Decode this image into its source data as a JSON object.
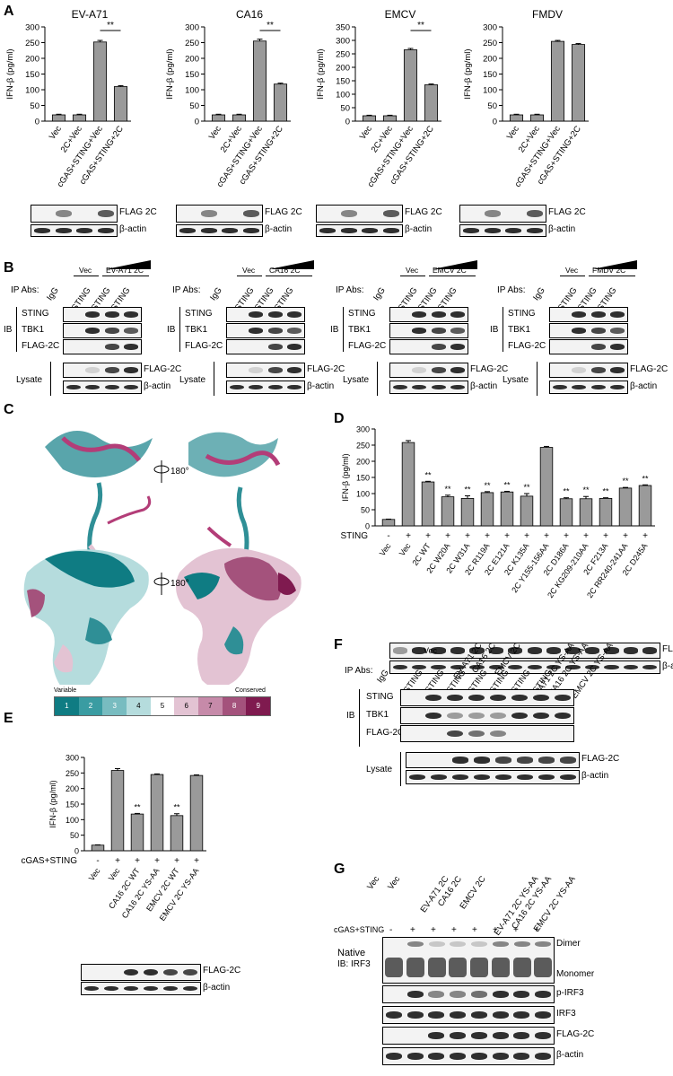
{
  "panel_labels": [
    "A",
    "B",
    "C",
    "D",
    "E",
    "F",
    "G"
  ],
  "chart_data": [
    {
      "type": "bar",
      "panel": "A",
      "title": "EV-A71",
      "ylabel": "IFN-β (pg/ml)",
      "ylim": [
        0,
        300
      ],
      "yticks": [
        0,
        50,
        100,
        150,
        200,
        250,
        300
      ],
      "categories": [
        "Vec",
        "2C+Vec",
        "cGAS+STING+Vec",
        "cGAS+STING+2C"
      ],
      "values": [
        20,
        20,
        252,
        110
      ],
      "errors": [
        2,
        2,
        5,
        3
      ],
      "significance": {
        "label": "**",
        "from": 2,
        "to": 3
      }
    },
    {
      "type": "bar",
      "panel": "A",
      "title": "CA16",
      "ylabel": "IFN-β (pg/ml)",
      "ylim": [
        0,
        300
      ],
      "yticks": [
        0,
        50,
        100,
        150,
        200,
        250,
        300
      ],
      "categories": [
        "Vec",
        "2C+Vec",
        "cGAS+STING+Vec",
        "cGAS+STING+2C"
      ],
      "values": [
        20,
        20,
        255,
        118
      ],
      "errors": [
        2,
        2,
        6,
        3
      ],
      "significance": {
        "label": "**",
        "from": 2,
        "to": 3
      }
    },
    {
      "type": "bar",
      "panel": "A",
      "title": "EMCV",
      "ylabel": "IFN-β (pg/ml)",
      "ylim": [
        0,
        350
      ],
      "yticks": [
        0,
        50,
        100,
        150,
        200,
        250,
        300,
        350
      ],
      "categories": [
        "Vec",
        "2C+Vec",
        "cGAS+STING+Vec",
        "cGAS+STING+2C"
      ],
      "values": [
        20,
        20,
        265,
        135
      ],
      "errors": [
        2,
        2,
        5,
        3
      ],
      "significance": {
        "label": "**",
        "from": 2,
        "to": 3
      }
    },
    {
      "type": "bar",
      "panel": "A",
      "title": "FMDV",
      "ylabel": "IFN-β (pg/ml)",
      "ylim": [
        0,
        300
      ],
      "yticks": [
        0,
        50,
        100,
        150,
        200,
        250,
        300
      ],
      "categories": [
        "Vec",
        "2C+Vec",
        "cGAS+STING+Vec",
        "cGAS+STING+2C"
      ],
      "values": [
        20,
        20,
        254,
        244
      ],
      "errors": [
        2,
        2,
        3,
        3
      ]
    },
    {
      "type": "bar",
      "panel": "D",
      "ylabel": "IFN-β (pg/ml)",
      "ylim": [
        0,
        300
      ],
      "yticks": [
        0,
        50,
        100,
        150,
        200,
        250,
        300
      ],
      "row_label": "cGAS+STING",
      "row_signs": [
        "-",
        "+",
        "+",
        "+",
        "+",
        "+",
        "+",
        "+",
        "+",
        "+",
        "+",
        "+",
        "+",
        "+"
      ],
      "categories": [
        "Vec",
        "Vec",
        "2C WT",
        "2C W20A",
        "2C W31A",
        "2C R119A",
        "2C E121A",
        "2C K135A",
        "2C Y155-156AA",
        "2C D186A",
        "2C KG209-210AA",
        "2C F213A",
        "2C RR240-241AA",
        "2C D245A"
      ],
      "values": [
        20,
        258,
        136,
        90,
        85,
        103,
        105,
        92,
        243,
        84,
        84,
        85,
        117,
        125
      ],
      "errors": [
        1,
        6,
        2,
        5,
        8,
        3,
        2,
        8,
        3,
        3,
        7,
        2,
        2,
        2
      ],
      "stars": [
        "",
        "",
        "**",
        "**",
        "**",
        "**",
        "**",
        "**",
        "",
        "**",
        "**",
        "**",
        "**",
        "**"
      ]
    },
    {
      "type": "bar",
      "panel": "E",
      "ylabel": "IFN-β (pg/ml)",
      "ylim": [
        0,
        300
      ],
      "yticks": [
        0,
        50,
        100,
        150,
        200,
        250,
        300
      ],
      "row_label": "cGAS+STING",
      "row_signs": [
        "-",
        "+",
        "+",
        "+",
        "+",
        "+"
      ],
      "categories": [
        "Vec",
        "Vec",
        "CA16 2C WT",
        "CA16 2C YS-AA",
        "EMCV 2C WT",
        "EMCV 2C YS-AA"
      ],
      "values": [
        18,
        258,
        118,
        245,
        113,
        242
      ],
      "errors": [
        1,
        6,
        2,
        2,
        6,
        2
      ],
      "stars": [
        "",
        "",
        "**",
        "",
        "**",
        ""
      ]
    }
  ],
  "blot_labels": {
    "flag2c": "FLAG 2C",
    "flag2c_dash": "FLAG-2C",
    "actin": "β-actin",
    "sting": "STING",
    "tbk1": "TBK1",
    "lysate": "Lysate",
    "ib": "IB",
    "ip_abs": "IP Abs:",
    "igg": "IgG",
    "vec": "Vec"
  },
  "panelB": {
    "groups": [
      {
        "construct": "EV-A71 2C"
      },
      {
        "construct": "CA16 2C"
      },
      {
        "construct": "EMCV 2C"
      },
      {
        "construct": "FMDV 2C"
      }
    ]
  },
  "panelC": {
    "rotation": "180°",
    "scale_left": "Variable",
    "scale_right": "Conserved",
    "scale": [
      {
        "n": "1",
        "color": "#0f7c83"
      },
      {
        "n": "2",
        "color": "#3a9ca2"
      },
      {
        "n": "3",
        "color": "#78bcc0"
      },
      {
        "n": "4",
        "color": "#b5dcdd"
      },
      {
        "n": "5",
        "color": "#ffffff"
      },
      {
        "n": "6",
        "color": "#e3c3d3"
      },
      {
        "n": "7",
        "color": "#c68aa9"
      },
      {
        "n": "8",
        "color": "#a4527c"
      },
      {
        "n": "9",
        "color": "#7f1a4f"
      }
    ]
  },
  "panelF": {
    "constructs": [
      "EV-A71 2C",
      "CA16 2C",
      "EMCV 2C",
      "EV-A71 2C YS-AA",
      "CA16 2C YS-AA",
      "EMCV 2C YS-AA"
    ]
  },
  "panelG": {
    "lanes": [
      "Vec",
      "Vec",
      "EV-A71 2C",
      "CA16 2C",
      "EMCV 2C",
      "EV-A71 2C YS-AA",
      "CA16 2C YS-AA",
      "EMCV 2C YS-AA"
    ],
    "row_label": "cGAS+STING",
    "signs": [
      "-",
      "+",
      "+",
      "+",
      "+",
      "+",
      "+",
      "+"
    ],
    "native": "Native",
    "native_ib": "IB: IRF3",
    "dimer": "Dimer",
    "monomer": "Monomer",
    "blots": [
      "p-IRF3",
      "IRF3",
      "FLAG-2C",
      "β-actin"
    ]
  }
}
